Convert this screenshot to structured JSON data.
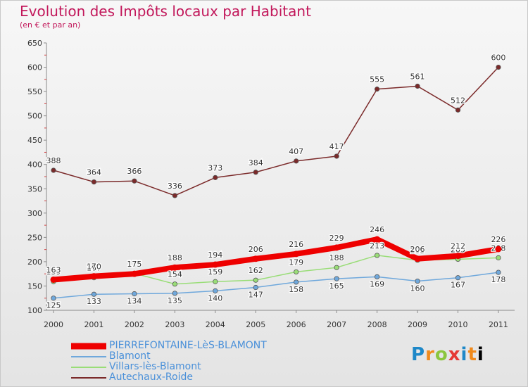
{
  "header": {
    "title": "Evolution des Impôts locaux par Habitant",
    "subtitle": "(en € et par an)"
  },
  "logo": {
    "text": "Proxiti"
  },
  "chart_data": {
    "type": "line",
    "title": "Evolution des Impôts locaux par Habitant",
    "subtitle": "(en € et par an)",
    "xlabel": "",
    "ylabel": "",
    "x": [
      2000,
      2001,
      2002,
      2003,
      2004,
      2005,
      2006,
      2007,
      2008,
      2009,
      2010,
      2011
    ],
    "ylim": [
      100,
      650
    ],
    "yticks": [
      100,
      150,
      200,
      250,
      300,
      350,
      400,
      450,
      500,
      550,
      600,
      650
    ],
    "grid": false,
    "legend_position": "bottom-left",
    "series": [
      {
        "name": "Autechaux-Roide",
        "color": "#7b2a2a",
        "values": [
          388,
          364,
          366,
          336,
          373,
          384,
          407,
          417,
          555,
          561,
          512,
          600
        ],
        "labels": [
          "388",
          "364",
          "366",
          "336",
          "373",
          "384",
          "407",
          "417",
          "555",
          "561",
          "512",
          "600"
        ]
      },
      {
        "name": "Villars-lès-Blamont",
        "color": "#99dd77",
        "values": [
          159,
          167,
          176,
          154,
          159,
          162,
          179,
          188,
          213,
          203,
          205,
          208
        ],
        "labels": [
          "159",
          "167",
          "176",
          "154",
          "159",
          "162",
          "179",
          "188",
          "213",
          "203",
          "205",
          "208"
        ]
      },
      {
        "name": "Blamont",
        "color": "#6fa8dc",
        "values": [
          125,
          133,
          134,
          135,
          140,
          147,
          158,
          165,
          169,
          160,
          167,
          178
        ],
        "labels": [
          "125",
          "133",
          "134",
          "135",
          "140",
          "147",
          "158",
          "165",
          "169",
          "160",
          "167",
          "178"
        ]
      },
      {
        "name": "PIERREFONTAINE-LèS-BLAMONT",
        "color": "#ee0000",
        "values": [
          163,
          170,
          175,
          188,
          194,
          206,
          216,
          229,
          246,
          206,
          212,
          226
        ],
        "labels": [
          "163",
          "170",
          "175",
          "188",
          "194",
          "206",
          "216",
          "229",
          "246",
          "206",
          "212",
          "226"
        ]
      }
    ],
    "legend": [
      "PIERREFONTAINE-LèS-BLAMONT",
      "Blamont",
      "Villars-lès-Blamont",
      "Autechaux-Roide"
    ]
  }
}
